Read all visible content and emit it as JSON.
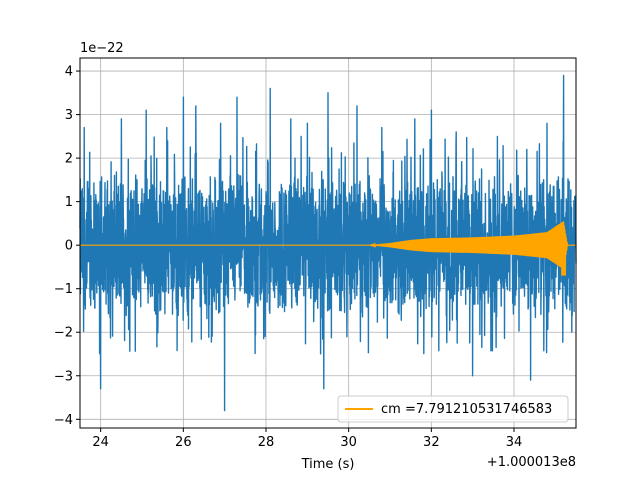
{
  "chart_data": {
    "type": "line",
    "xlabel": "Time (s)",
    "x_offset_label": "+1.000013e8",
    "y_scale_label": "1e−22",
    "xlim": [
      23.5,
      35.5
    ],
    "ylim": [
      -4.2,
      4.3
    ],
    "x_ticks": [
      24,
      26,
      28,
      30,
      32,
      34
    ],
    "x_tick_labels": [
      "24",
      "26",
      "28",
      "30",
      "32",
      "34"
    ],
    "y_ticks": [
      -4,
      -3,
      -2,
      -1,
      0,
      1,
      2,
      3,
      4
    ],
    "y_tick_labels": [
      "−4",
      "−3",
      "−2",
      "−1",
      "0",
      "1",
      "2",
      "3",
      "4"
    ],
    "grid": true,
    "legend": {
      "placement": "lower-right",
      "entries": [
        "cm =7.791210531746583"
      ]
    },
    "series": [
      {
        "role": "strain",
        "color": "#1f77b4",
        "description": "noise-dominated strain signal",
        "typical_envelope": 1.8,
        "peaks": [
          {
            "x": 23.6,
            "y": 2.7
          },
          {
            "x": 24.0,
            "y": -3.3
          },
          {
            "x": 24.5,
            "y": 2.9
          },
          {
            "x": 25.1,
            "y": 3.1
          },
          {
            "x": 25.6,
            "y": 2.7
          },
          {
            "x": 26.0,
            "y": 3.4
          },
          {
            "x": 26.3,
            "y": 3.2
          },
          {
            "x": 26.9,
            "y": 2.8
          },
          {
            "x": 27.0,
            "y": -3.8
          },
          {
            "x": 27.3,
            "y": 3.4
          },
          {
            "x": 28.1,
            "y": 3.6
          },
          {
            "x": 28.6,
            "y": 2.9
          },
          {
            "x": 29.0,
            "y": 2.8
          },
          {
            "x": 29.4,
            "y": -3.3
          },
          {
            "x": 29.5,
            "y": 3.5
          },
          {
            "x": 30.2,
            "y": 3.2
          },
          {
            "x": 30.8,
            "y": 2.7
          },
          {
            "x": 31.6,
            "y": 2.9
          },
          {
            "x": 32.0,
            "y": 3.1
          },
          {
            "x": 32.6,
            "y": 2.6
          },
          {
            "x": 33.0,
            "y": -3.0
          },
          {
            "x": 33.6,
            "y": 2.5
          },
          {
            "x": 34.4,
            "y": -3.1
          },
          {
            "x": 34.8,
            "y": 2.8
          },
          {
            "x": 35.2,
            "y": 3.9
          },
          {
            "x": 35.4,
            "y": -2.0
          }
        ]
      },
      {
        "role": "template",
        "name": "cm =7.791210531746583",
        "color": "#ffa500",
        "envelope": [
          {
            "x": 23.5,
            "y": 0.0
          },
          {
            "x": 30.5,
            "y": 0.0
          },
          {
            "x": 31.0,
            "y": 0.05
          },
          {
            "x": 31.5,
            "y": 0.12
          },
          {
            "x": 32.0,
            "y": 0.16
          },
          {
            "x": 33.0,
            "y": 0.18
          },
          {
            "x": 34.0,
            "y": 0.22
          },
          {
            "x": 34.8,
            "y": 0.3
          },
          {
            "x": 35.2,
            "y": 0.55
          },
          {
            "x": 35.3,
            "y": 0.0
          },
          {
            "x": 35.5,
            "y": 0.0
          }
        ],
        "merger_x": 35.2,
        "merger_min": -0.7
      }
    ]
  }
}
